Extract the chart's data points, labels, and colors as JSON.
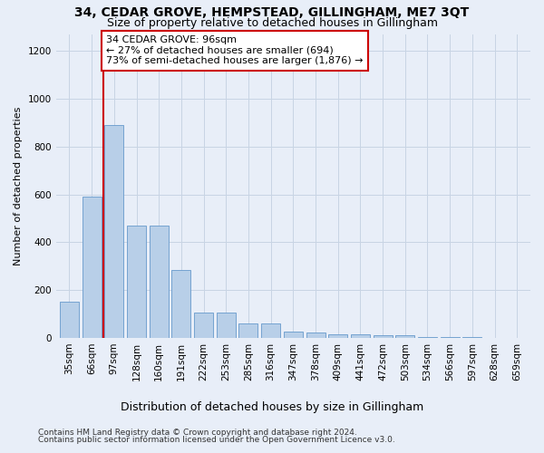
{
  "title": "34, CEDAR GROVE, HEMPSTEAD, GILLINGHAM, ME7 3QT",
  "subtitle": "Size of property relative to detached houses in Gillingham",
  "xlabel": "Distribution of detached houses by size in Gillingham",
  "ylabel": "Number of detached properties",
  "categories": [
    "35sqm",
    "66sqm",
    "97sqm",
    "128sqm",
    "160sqm",
    "191sqm",
    "222sqm",
    "253sqm",
    "285sqm",
    "316sqm",
    "347sqm",
    "378sqm",
    "409sqm",
    "441sqm",
    "472sqm",
    "503sqm",
    "534sqm",
    "566sqm",
    "597sqm",
    "628sqm",
    "659sqm"
  ],
  "values": [
    150,
    590,
    890,
    470,
    470,
    285,
    105,
    105,
    62,
    62,
    28,
    22,
    15,
    15,
    12,
    10,
    5,
    3,
    2,
    1,
    1
  ],
  "bar_color": "#b8cfe8",
  "bar_edge_color": "#6699cc",
  "grid_color": "#c8d4e4",
  "background_color": "#e8eef8",
  "annotation_box_facecolor": "#ffffff",
  "annotation_border_color": "#cc0000",
  "property_line_color": "#cc0000",
  "property_label": "34 CEDAR GROVE: 96sqm",
  "annotation_line1": "← 27% of detached houses are smaller (694)",
  "annotation_line2": "73% of semi-detached houses are larger (1,876) →",
  "property_bar_index": 2,
  "ylim": [
    0,
    1270
  ],
  "yticks": [
    0,
    200,
    400,
    600,
    800,
    1000,
    1200
  ],
  "footnote1": "Contains HM Land Registry data © Crown copyright and database right 2024.",
  "footnote2": "Contains public sector information licensed under the Open Government Licence v3.0.",
  "title_fontsize": 10,
  "subtitle_fontsize": 9,
  "xlabel_fontsize": 9,
  "ylabel_fontsize": 8,
  "tick_fontsize": 7.5,
  "annotation_fontsize": 8,
  "footnote_fontsize": 6.5
}
